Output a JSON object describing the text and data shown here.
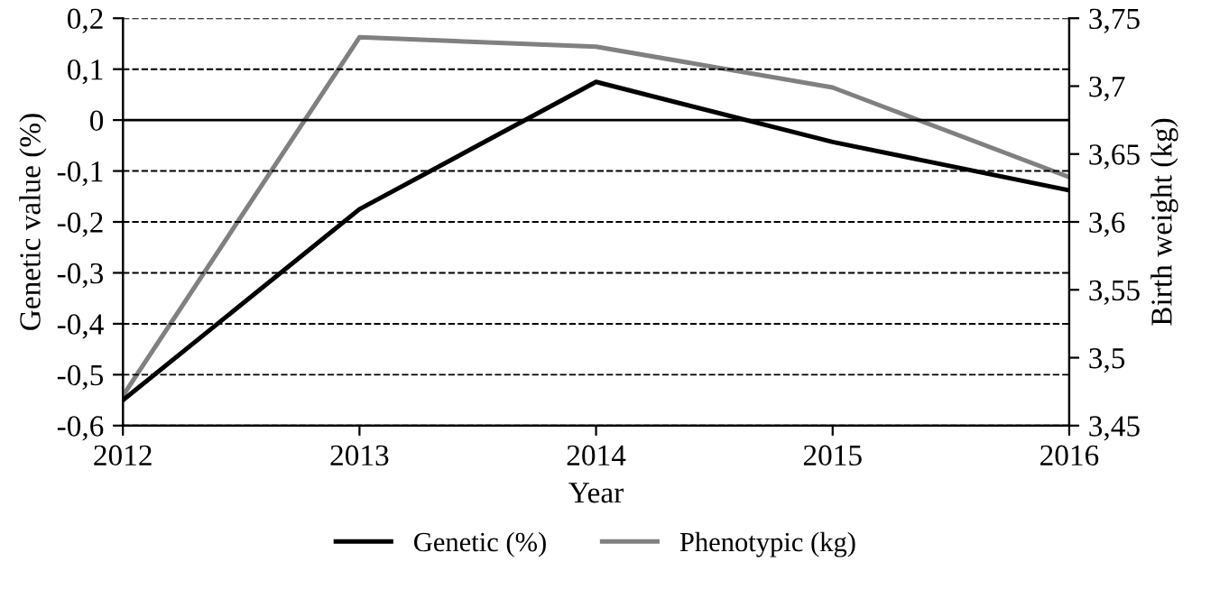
{
  "chart_data": {
    "type": "line",
    "xlabel": "Year",
    "ylabel": "Genetic value (%)",
    "y2label": "Birth weight (kg)",
    "x": [
      2012,
      2013,
      2014,
      2015,
      2016
    ],
    "series": [
      {
        "name": "Genetic (%)",
        "color": "#000000",
        "values": [
          -0.55,
          -0.175,
          0.075,
          -0.043,
          -0.138
        ]
      },
      {
        "name": "Phenotypic (kg)",
        "color": "#808080",
        "axis": "y2",
        "values": [
          3.472,
          3.736,
          3.729,
          3.699,
          3.633
        ]
      }
    ],
    "xlim": [
      2012,
      2016
    ],
    "xticks": [
      2012,
      2013,
      2014,
      2015,
      2016
    ],
    "ylim": [
      -0.6,
      0.2
    ],
    "yticks": [
      {
        "value": -0.6,
        "label": "-0,6"
      },
      {
        "value": -0.5,
        "label": "-0,5"
      },
      {
        "value": -0.4,
        "label": "-0,4"
      },
      {
        "value": -0.3,
        "label": "-0,3"
      },
      {
        "value": -0.2,
        "label": "-0,2"
      },
      {
        "value": -0.1,
        "label": "-0,1"
      },
      0,
      {
        "value": 0.1,
        "label": "0,1"
      },
      {
        "value": 0.2,
        "label": "0,2"
      }
    ],
    "y2lim": [
      3.45,
      3.75
    ],
    "y2ticks": [
      {
        "value": 3.45,
        "label": "3,45"
      },
      {
        "value": 3.5,
        "label": "3,5"
      },
      {
        "value": 3.55,
        "label": "3,55"
      },
      {
        "value": 3.6,
        "label": "3,6"
      },
      {
        "value": 3.65,
        "label": "3,65"
      },
      {
        "value": 3.7,
        "label": "3,7"
      },
      {
        "value": 3.75,
        "label": "3,75"
      }
    ],
    "ref_lines": [
      {
        "axis": "y",
        "value": 0,
        "color": "#000000",
        "line_style": "solid"
      }
    ],
    "grid": "y",
    "legend": "bottom",
    "marker": "none",
    "line_style": "solid"
  }
}
